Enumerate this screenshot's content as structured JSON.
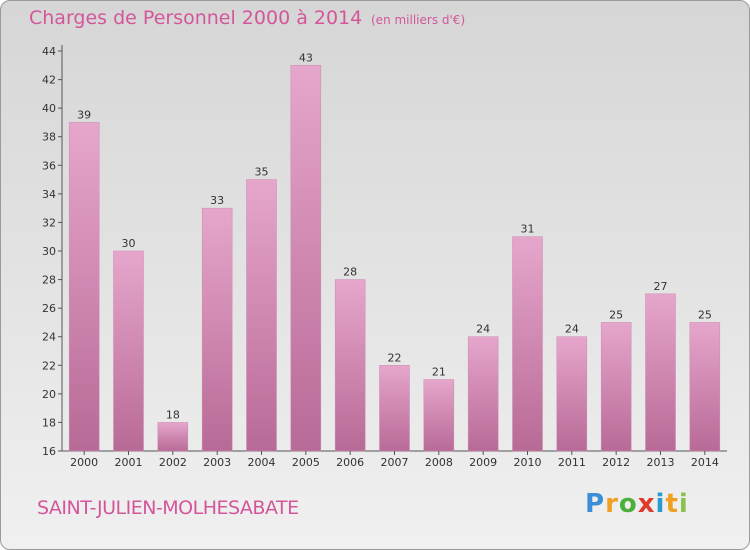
{
  "header": {
    "title": "Charges de Personnel 2000 à 2014",
    "unit": "(en milliers d'€)"
  },
  "footer": {
    "commune": "SAINT-JULIEN-MOLHESABATE",
    "logo": {
      "p": "P",
      "r": "r",
      "o": "o",
      "x": "x",
      "i1": "i",
      "t": "t",
      "i2": "i"
    }
  },
  "colors": {
    "bar_top": "#e6a6cc",
    "bar_bottom": "#b86a96",
    "text_accent": "#d4569a"
  },
  "chart_data": {
    "type": "bar",
    "title": "Charges de Personnel 2000 à 2014",
    "subtitle": "(en milliers d'€)",
    "xlabel": "",
    "ylabel": "",
    "categories": [
      "2000",
      "2001",
      "2002",
      "2003",
      "2004",
      "2005",
      "2006",
      "2007",
      "2008",
      "2009",
      "2010",
      "2011",
      "2012",
      "2013",
      "2014"
    ],
    "values": [
      39,
      30,
      18,
      33,
      35,
      43,
      28,
      22,
      21,
      24,
      31,
      24,
      25,
      27,
      25
    ],
    "ylim": [
      16,
      44
    ],
    "yticks": [
      16,
      18,
      20,
      22,
      24,
      26,
      28,
      30,
      32,
      34,
      36,
      38,
      40,
      42,
      44
    ],
    "grid": false,
    "legend": "none"
  }
}
